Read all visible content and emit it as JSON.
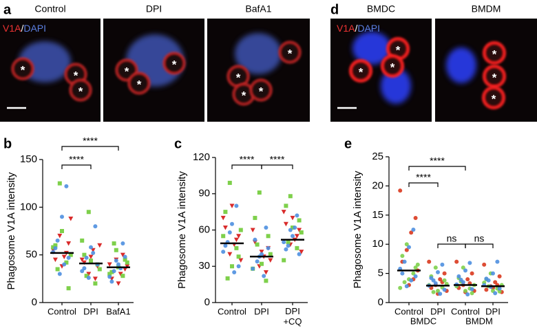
{
  "figure_a": {
    "letter": "a",
    "stain": "V1A",
    "separator": "/",
    "counterstain": "DAPI",
    "panels": [
      {
        "label": "Control",
        "marks": [
          "*",
          "*",
          "*"
        ]
      },
      {
        "label": "DPI",
        "marks": [
          "*",
          "*",
          "*"
        ]
      },
      {
        "label": "BafA1",
        "marks": [
          "*",
          "*",
          "*",
          "*"
        ]
      }
    ]
  },
  "figure_d": {
    "letter": "d",
    "stain": "V1A",
    "separator": "/",
    "counterstain": "DAPI",
    "panels": [
      {
        "label": "BMDC",
        "marks": [
          "*",
          "*",
          "*"
        ]
      },
      {
        "label": "BMDM",
        "marks": [
          "*",
          "*",
          "*"
        ]
      }
    ]
  },
  "chart_data": [
    {
      "type": "strip",
      "letter": "b",
      "y_label": "Phagosome V1A intensity",
      "categories": [
        "Control",
        "DPI",
        "BafA1"
      ],
      "ylim": [
        0,
        150
      ],
      "yticks": [
        0,
        50,
        100,
        150
      ],
      "means": [
        52,
        41,
        37
      ],
      "annotations": [
        "****",
        "****"
      ],
      "series": [
        {
          "color": "#d92b2b",
          "marker": "triangle",
          "values": [
            [
              55,
              62,
              48,
              70,
              45,
              88,
              52,
              38
            ],
            [
              45,
              38,
              55,
              30,
              42,
              60,
              25,
              48
            ],
            [
              40,
              35,
              30,
              45,
              25,
              38,
              50,
              20
            ]
          ]
        },
        {
          "color": "#7ed04b",
          "marker": "square",
          "values": [
            [
              125,
              60,
              50,
              42,
              75,
              35,
              58,
              15
            ],
            [
              95,
              50,
              35,
              20,
              44,
              28,
              65,
              40
            ],
            [
              55,
              32,
              42,
              28,
              37,
              62,
              30,
              45
            ]
          ]
        },
        {
          "color": "#4e8fe0",
          "marker": "circle",
          "values": [
            [
              122,
              90,
              65,
              53,
              47,
              40,
              30,
              57
            ],
            [
              80,
              58,
              47,
              33,
              40,
              52,
              26,
              36
            ],
            [
              62,
              40,
              33,
              27,
              48,
              36,
              44,
              22
            ]
          ]
        }
      ]
    },
    {
      "type": "strip",
      "letter": "c",
      "y_label": "Phagosome V1A intensity",
      "categories": [
        "Control",
        "DPI",
        "DPI\n+CQ"
      ],
      "ylim": [
        0,
        120
      ],
      "yticks": [
        0,
        30,
        60,
        90,
        120
      ],
      "means": [
        49,
        38,
        52
      ],
      "annotations": [
        "****",
        "****"
      ],
      "series": [
        {
          "color": "#d92b2b",
          "marker": "triangle",
          "values": [
            [
              70,
              55,
              48,
              40,
              62,
              35,
              52,
              80
            ],
            [
              60,
              45,
              38,
              30,
              50,
              35,
              25,
              42
            ],
            [
              75,
              60,
              52,
              48,
              65,
              42,
              55,
              70
            ]
          ]
        },
        {
          "color": "#7ed04b",
          "marker": "square",
          "values": [
            [
              99,
              75,
              60,
              45,
              30,
              20,
              55,
              38
            ],
            [
              91,
              70,
              40,
              18,
              32,
              48,
              28,
              55
            ],
            [
              88,
              80,
              58,
              45,
              62,
              50,
              35,
              68
            ]
          ]
        },
        {
          "color": "#4e8fe0",
          "marker": "circle",
          "values": [
            [
              80,
              65,
              50,
              42,
              30,
              25,
              58,
              47
            ],
            [
              62,
              40,
              34,
              28,
              45,
              22,
              38,
              52
            ],
            [
              72,
              55,
              47,
              50,
              40,
              62,
              60,
              44
            ]
          ]
        }
      ]
    },
    {
      "type": "strip",
      "letter": "e",
      "y_label": "Phagosome V1A intensity",
      "categories": [
        "Control",
        "DPI",
        "Control",
        "DPI"
      ],
      "groups": [
        "BMDC",
        "BMDM"
      ],
      "ylim": [
        0,
        25
      ],
      "yticks": [
        0,
        5,
        10,
        15,
        20,
        25
      ],
      "means": [
        5.5,
        2.9,
        3.0,
        2.8
      ],
      "annotations": [
        "****",
        "****",
        "ns",
        "ns"
      ],
      "series": [
        {
          "color": "#d9381e",
          "marker": "circle",
          "values": [
            [
              19.2,
              14.5,
              12,
              9,
              7,
              5.5,
              4,
              3
            ],
            [
              7,
              5,
              4,
              3,
              2.5,
              2,
              3.5,
              1.5
            ],
            [
              7,
              5,
              4,
              3,
              2.5,
              2,
              3.3,
              1.8
            ],
            [
              6.5,
              4.5,
              3.5,
              2.8,
              2.2,
              1.8,
              3,
              2.5
            ]
          ]
        },
        {
          "color": "#7ed04b",
          "marker": "circle",
          "values": [
            [
              10,
              8,
              6.5,
              5,
              4,
              3.5,
              2.5,
              6
            ],
            [
              6,
              4.5,
              3.2,
              2.6,
              2,
              1.8,
              3,
              3.8
            ],
            [
              6,
              4.2,
              3,
              2.4,
              2,
              3.6,
              2.8,
              1.6
            ],
            [
              5,
              4,
              3,
              2.4,
              2,
              2.8,
              3.4,
              1.9
            ]
          ]
        },
        {
          "color": "#4e8fe0",
          "marker": "circle",
          "values": [
            [
              12.5,
              9.5,
              7,
              5.8,
              4.5,
              3.8,
              2.8,
              5
            ],
            [
              6.5,
              5.2,
              3.8,
              2.9,
              2.2,
              1.5,
              3.3,
              4.2
            ],
            [
              6.8,
              5.5,
              3.9,
              3.1,
              2.3,
              1.4,
              3.5,
              4.5
            ],
            [
              7,
              5,
              3.8,
              3,
              2.4,
              1.6,
              2.7,
              4.1
            ]
          ]
        }
      ]
    }
  ]
}
